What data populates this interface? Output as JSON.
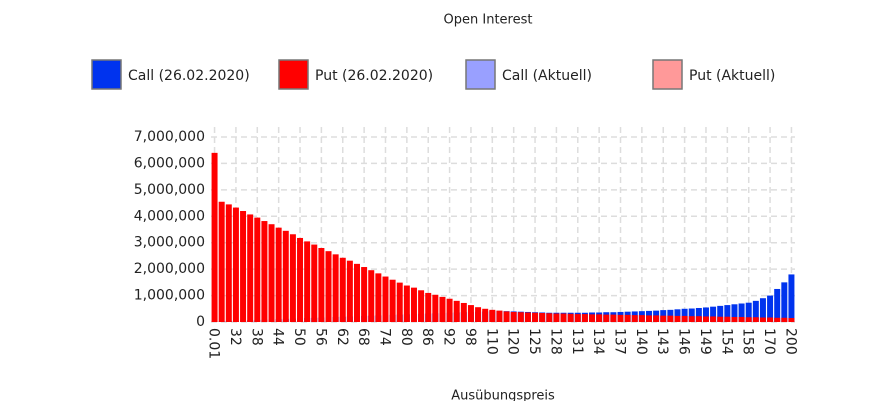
{
  "chart_data": {
    "type": "bar",
    "title": "Open Interest",
    "x_label": "Ausübungspreis",
    "categories": [
      "0.01",
      null,
      null,
      "32",
      null,
      null,
      "38",
      null,
      null,
      "44",
      null,
      null,
      "50",
      null,
      null,
      "56",
      null,
      null,
      "62",
      null,
      null,
      "68",
      null,
      null,
      "74",
      null,
      null,
      "80",
      null,
      null,
      "86",
      null,
      null,
      "92",
      null,
      null,
      "98",
      null,
      null,
      "110",
      null,
      null,
      "120",
      null,
      null,
      "125",
      null,
      null,
      "128",
      null,
      null,
      "131",
      null,
      null,
      "134",
      null,
      null,
      "137",
      null,
      null,
      "140",
      null,
      null,
      "143",
      null,
      null,
      "146",
      null,
      null,
      "149",
      null,
      null,
      "154",
      null,
      null,
      "158",
      null,
      null,
      "170",
      null,
      null,
      "200"
    ],
    "series": [
      {
        "name": "Call (26.02.2020)",
        "color": "#0033ee",
        "values": [
          20000,
          30000,
          40000,
          50000,
          60000,
          70000,
          80000,
          90000,
          100000,
          110000,
          120000,
          130000,
          140000,
          150000,
          160000,
          170000,
          180000,
          190000,
          200000,
          210000,
          220000,
          230000,
          240000,
          250000,
          260000,
          270000,
          280000,
          290000,
          300000,
          310000,
          320000,
          330000,
          340000,
          350000,
          360000,
          370000,
          380000,
          390000,
          400000,
          410000,
          420000,
          410000,
          400000,
          390000,
          380000,
          370000,
          360000,
          350000,
          350000,
          350000,
          350000,
          350000,
          350000,
          360000,
          360000,
          370000,
          370000,
          380000,
          390000,
          400000,
          410000,
          420000,
          430000,
          450000,
          460000,
          480000,
          500000,
          510000,
          530000,
          550000,
          580000,
          610000,
          640000,
          670000,
          700000,
          730000,
          800000,
          900000,
          1000000,
          1250000,
          1500000,
          1800000
        ]
      },
      {
        "name": "Put (26.02.2020)",
        "color": "#ff0000",
        "values": [
          6400000,
          4550000,
          4450000,
          4330000,
          4200000,
          4070000,
          3950000,
          3820000,
          3700000,
          3570000,
          3450000,
          3320000,
          3180000,
          3050000,
          2930000,
          2800000,
          2680000,
          2560000,
          2430000,
          2320000,
          2200000,
          2080000,
          1960000,
          1840000,
          1720000,
          1600000,
          1490000,
          1380000,
          1300000,
          1200000,
          1100000,
          1030000,
          950000,
          880000,
          800000,
          720000,
          640000,
          560000,
          500000,
          460000,
          430000,
          400000,
          380000,
          370000,
          360000,
          350000,
          340000,
          330000,
          320000,
          320000,
          310000,
          300000,
          300000,
          290000,
          290000,
          280000,
          280000,
          270000,
          270000,
          260000,
          260000,
          250000,
          250000,
          240000,
          240000,
          230000,
          230000,
          220000,
          220000,
          210000,
          210000,
          200000,
          200000,
          190000,
          190000,
          180000,
          180000,
          170000,
          170000,
          160000,
          160000,
          150000
        ]
      },
      {
        "name": "Call (Aktuell)",
        "color": "#99a0ff",
        "values": [
          null,
          null,
          null,
          null,
          null,
          null,
          null,
          null,
          null,
          null,
          null,
          null,
          null,
          null,
          null,
          null,
          null,
          null,
          null,
          null,
          null,
          null,
          null,
          null,
          null,
          null,
          null,
          null,
          null,
          null,
          null,
          null,
          null,
          null,
          null,
          null,
          null,
          null,
          null,
          null,
          null,
          null,
          null,
          null,
          null,
          null,
          null,
          null,
          null,
          null,
          null,
          null,
          null,
          null,
          null,
          null,
          null,
          null,
          null,
          null,
          null,
          null,
          null,
          null,
          null,
          null,
          null,
          null,
          null,
          null,
          null,
          null,
          null,
          null,
          null,
          null,
          null,
          null,
          null,
          null,
          null,
          null
        ]
      },
      {
        "name": "Put (Aktuell)",
        "color": "#ff9999",
        "values": [
          null,
          null,
          null,
          null,
          null,
          null,
          null,
          null,
          null,
          null,
          null,
          null,
          null,
          null,
          null,
          null,
          null,
          null,
          null,
          null,
          null,
          null,
          null,
          null,
          null,
          null,
          null,
          null,
          null,
          null,
          null,
          null,
          null,
          null,
          null,
          null,
          null,
          null,
          null,
          null,
          null,
          null,
          null,
          null,
          null,
          null,
          null,
          null,
          null,
          null,
          null,
          null,
          null,
          null,
          null,
          null,
          null,
          null,
          null,
          null,
          null,
          null,
          null,
          null,
          null,
          null,
          null,
          null,
          null,
          null,
          null,
          null,
          null,
          null,
          null,
          null,
          null,
          null,
          null,
          null,
          null,
          null
        ]
      }
    ],
    "ylim": [
      0,
      7000000
    ],
    "yticks": [
      0,
      {
        "value": 1000000,
        "label": "1,000,000"
      },
      {
        "value": 2000000,
        "label": "2,000,000"
      },
      {
        "value": 3000000,
        "label": "3,000,000"
      },
      {
        "value": 4000000,
        "label": "4,000,000"
      },
      {
        "value": 5000000,
        "label": "5,000,000"
      },
      {
        "value": 6000000,
        "label": "6,000,000"
      },
      {
        "value": 7000000,
        "label": "7,000,000"
      }
    ],
    "grid": true
  }
}
